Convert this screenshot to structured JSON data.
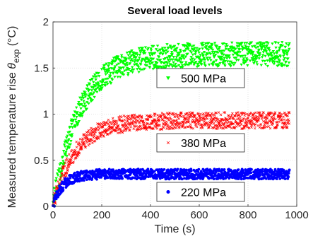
{
  "chart_data": {
    "type": "scatter",
    "title": "Several load levels",
    "xlabel": "Time (s)",
    "ylabel": {
      "prefix": "Measured temperature rise ",
      "symbol": "θ",
      "subscript": "exp",
      "unit": " (°C)"
    },
    "xlim": [
      0,
      1000
    ],
    "ylim": [
      0,
      2
    ],
    "xticks": [
      0,
      200,
      400,
      600,
      800,
      1000
    ],
    "yticks": [
      0,
      0.5,
      1,
      1.5,
      2
    ],
    "ytick_labels": [
      "0",
      "0.5",
      "1",
      "1.5",
      "2"
    ],
    "grid": true,
    "legend_placement": "inline-right",
    "series": [
      {
        "name": "500 MPa",
        "marker": "triangle-down",
        "color": "#00ff00",
        "model": {
          "plateau": 1.65,
          "tau": 110,
          "noise": 0.13,
          "t_start": 0,
          "t_end": 970,
          "count": 1000
        }
      },
      {
        "name": "380 MPa",
        "marker": "x",
        "color": "#ff0000",
        "model": {
          "plateau": 0.93,
          "tau": 90,
          "noise": 0.09,
          "t_start": 0,
          "t_end": 970,
          "count": 1000
        }
      },
      {
        "name": "220 MPa",
        "marker": "circle",
        "color": "#0000ff",
        "model": {
          "plateau": 0.35,
          "tau": 40,
          "noise": 0.055,
          "t_start": 0,
          "t_end": 970,
          "count": 1000
        }
      }
    ]
  }
}
